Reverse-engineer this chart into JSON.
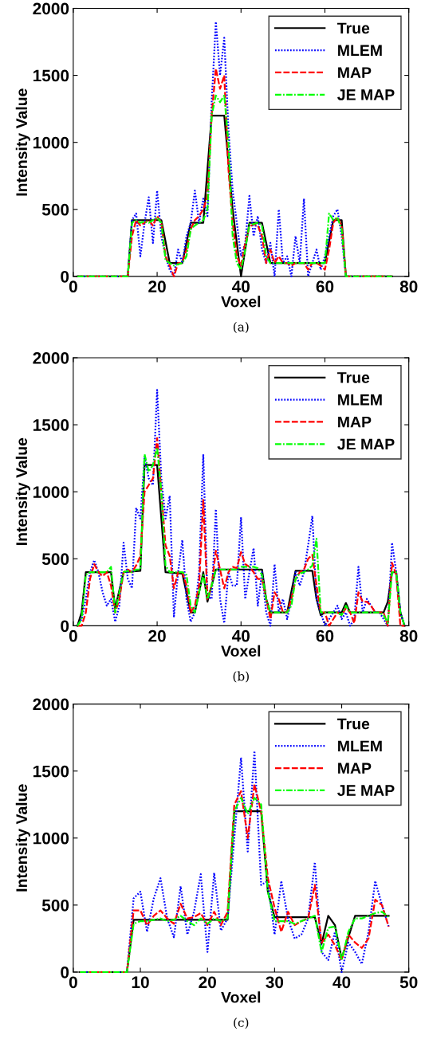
{
  "chart_data": [
    {
      "type": "line",
      "xlabel": "Voxel",
      "ylabel": "Intensity Value",
      "annotations": [
        "(a)"
      ],
      "xlim": [
        0,
        80
      ],
      "ylim": [
        0,
        2000
      ],
      "xticks": [
        0,
        20,
        40,
        60,
        80
      ],
      "yticks": [
        0,
        500,
        1000,
        1500,
        2000
      ],
      "grid": false,
      "legend": "top right",
      "series": [
        {
          "name": "True",
          "color": "#000000",
          "line_style": "solid",
          "x": [
            1,
            13,
            14,
            21,
            23,
            26,
            28,
            31,
            33,
            36,
            38,
            40,
            42,
            45,
            47,
            60,
            62,
            64,
            65,
            76
          ],
          "values": [
            0,
            0,
            420,
            420,
            100,
            100,
            400,
            400,
            1200,
            1200,
            500,
            0,
            400,
            400,
            100,
            100,
            420,
            420,
            0,
            0
          ]
        },
        {
          "name": "MLEM",
          "color": "#0000ff",
          "line_style": "dotted",
          "x": [
            1,
            13,
            14,
            15,
            16,
            17,
            18,
            19,
            20,
            21,
            22,
            23,
            24,
            25,
            26,
            27,
            28,
            29,
            30,
            31,
            32,
            33,
            34,
            35,
            36,
            37,
            38,
            39,
            40,
            41,
            42,
            43,
            44,
            45,
            46,
            47,
            48,
            49,
            50,
            51,
            52,
            53,
            54,
            55,
            56,
            57,
            58,
            59,
            60,
            61,
            62,
            63,
            64,
            65,
            76
          ],
          "values": [
            0,
            0,
            420,
            470,
            150,
            400,
            590,
            250,
            640,
            300,
            150,
            50,
            0,
            200,
            100,
            300,
            400,
            640,
            400,
            580,
            450,
            1300,
            1900,
            1500,
            1780,
            1100,
            640,
            400,
            150,
            250,
            600,
            300,
            450,
            200,
            100,
            250,
            0,
            500,
            100,
            150,
            0,
            300,
            100,
            580,
            0,
            100,
            200,
            50,
            150,
            300,
            450,
            500,
            300,
            0,
            0
          ]
        },
        {
          "name": "MAP",
          "color": "#ff0000",
          "line_style": "dashed",
          "x": [
            1,
            13,
            14,
            15,
            16,
            17,
            18,
            19,
            20,
            21,
            22,
            23,
            24,
            25,
            26,
            27,
            28,
            29,
            30,
            31,
            32,
            33,
            34,
            35,
            36,
            37,
            38,
            39,
            40,
            41,
            42,
            43,
            44,
            45,
            46,
            47,
            48,
            49,
            50,
            51,
            52,
            53,
            54,
            55,
            56,
            57,
            58,
            59,
            60,
            61,
            62,
            63,
            64,
            65,
            76
          ],
          "values": [
            0,
            0,
            300,
            420,
            380,
            400,
            420,
            380,
            450,
            400,
            150,
            80,
            0,
            100,
            100,
            200,
            350,
            420,
            450,
            500,
            600,
            1200,
            1550,
            1400,
            1500,
            800,
            400,
            150,
            80,
            250,
            370,
            390,
            380,
            300,
            100,
            200,
            100,
            150,
            100,
            100,
            80,
            100,
            100,
            100,
            50,
            100,
            100,
            80,
            50,
            200,
            400,
            440,
            380,
            0,
            0
          ]
        },
        {
          "name": "JE MAP",
          "color": "#00ff00",
          "line_style": "dashdot",
          "x": [
            1,
            13,
            14,
            15,
            16,
            17,
            18,
            19,
            20,
            21,
            22,
            23,
            24,
            25,
            26,
            27,
            28,
            29,
            30,
            31,
            32,
            33,
            34,
            35,
            36,
            37,
            38,
            39,
            40,
            41,
            42,
            43,
            44,
            45,
            46,
            47,
            60,
            61,
            62,
            63,
            64,
            65,
            76
          ],
          "values": [
            0,
            0,
            400,
            420,
            400,
            410,
            400,
            420,
            440,
            400,
            120,
            100,
            80,
            90,
            100,
            150,
            350,
            380,
            400,
            420,
            500,
            1200,
            1350,
            1300,
            1350,
            1000,
            300,
            100,
            50,
            200,
            390,
            390,
            400,
            380,
            150,
            100,
            100,
            470,
            420,
            440,
            350,
            0,
            0
          ]
        }
      ]
    },
    {
      "type": "line",
      "xlabel": "Voxel",
      "ylabel": "Intensity Value",
      "annotations": [
        "(b)"
      ],
      "xlim": [
        0,
        80
      ],
      "ylim": [
        0,
        2000
      ],
      "xticks": [
        0,
        20,
        40,
        60,
        80
      ],
      "yticks": [
        0,
        500,
        1000,
        1500,
        2000
      ],
      "grid": false,
      "legend": "top right",
      "series": [
        {
          "name": "True",
          "color": "#000000",
          "line_style": "solid",
          "x": [
            1,
            2,
            3,
            9,
            10,
            12,
            16,
            17,
            20,
            22,
            26,
            28,
            29,
            31,
            32,
            33,
            34,
            45,
            46,
            47,
            51,
            53,
            57,
            58,
            59,
            60,
            64,
            65,
            66,
            74,
            75,
            76,
            77,
            78,
            79
          ],
          "values": [
            0,
            100,
            400,
            400,
            130,
            400,
            410,
            1200,
            1200,
            400,
            390,
            100,
            100,
            400,
            180,
            300,
            420,
            420,
            200,
            100,
            100,
            410,
            410,
            200,
            80,
            100,
            100,
            170,
            100,
            100,
            180,
            400,
            400,
            100,
            0
          ]
        },
        {
          "name": "MLEM",
          "color": "#0000ff",
          "line_style": "dotted",
          "x": [
            1,
            2,
            3,
            4,
            5,
            6,
            7,
            8,
            9,
            10,
            11,
            12,
            13,
            14,
            15,
            16,
            17,
            18,
            19,
            20,
            21,
            22,
            23,
            24,
            25,
            26,
            27,
            28,
            29,
            30,
            31,
            32,
            33,
            34,
            35,
            36,
            37,
            38,
            39,
            40,
            41,
            42,
            43,
            44,
            45,
            46,
            47,
            48,
            49,
            50,
            51,
            52,
            53,
            54,
            55,
            56,
            57,
            58,
            59,
            60,
            61,
            62,
            63,
            64,
            65,
            66,
            67,
            68,
            69,
            70,
            71,
            72,
            73,
            74,
            75,
            76,
            77,
            78,
            79
          ],
          "values": [
            0,
            50,
            200,
            400,
            490,
            400,
            250,
            150,
            200,
            30,
            150,
            620,
            350,
            280,
            880,
            800,
            1260,
            1100,
            1050,
            1760,
            1100,
            800,
            970,
            70,
            400,
            640,
            200,
            30,
            100,
            400,
            1280,
            220,
            200,
            870,
            200,
            20,
            400,
            300,
            300,
            810,
            200,
            400,
            580,
            150,
            400,
            100,
            0,
            460,
            100,
            200,
            50,
            200,
            400,
            300,
            400,
            600,
            820,
            200,
            100,
            0,
            50,
            100,
            150,
            50,
            100,
            0,
            50,
            440,
            100,
            200,
            150,
            100,
            100,
            50,
            0,
            620,
            400,
            100,
            0
          ]
        },
        {
          "name": "MAP",
          "color": "#ff0000",
          "line_style": "dashed",
          "x": [
            1,
            2,
            3,
            4,
            5,
            6,
            7,
            8,
            9,
            10,
            11,
            12,
            13,
            14,
            15,
            16,
            17,
            18,
            19,
            20,
            21,
            22,
            23,
            24,
            25,
            26,
            27,
            28,
            29,
            30,
            31,
            32,
            33,
            34,
            35,
            36,
            37,
            38,
            39,
            40,
            41,
            42,
            43,
            44,
            45,
            46,
            47,
            48,
            49,
            50,
            51,
            52,
            53,
            54,
            55,
            56,
            57,
            58,
            59,
            60,
            61,
            62,
            63,
            64,
            65,
            66,
            67,
            68,
            69,
            70,
            71,
            72,
            73,
            74,
            75,
            76,
            77,
            78,
            79
          ],
          "values": [
            0,
            0,
            100,
            350,
            460,
            400,
            370,
            400,
            300,
            100,
            200,
            400,
            420,
            400,
            450,
            520,
            1000,
            1050,
            1100,
            1400,
            1000,
            600,
            520,
            280,
            400,
            400,
            300,
            100,
            150,
            300,
            940,
            200,
            300,
            560,
            420,
            280,
            400,
            440,
            430,
            550,
            460,
            440,
            400,
            350,
            350,
            200,
            50,
            250,
            200,
            100,
            100,
            200,
            350,
            400,
            420,
            500,
            530,
            300,
            100,
            100,
            0,
            50,
            100,
            80,
            130,
            100,
            20,
            250,
            180,
            180,
            150,
            100,
            100,
            100,
            0,
            470,
            380,
            0,
            0
          ]
        },
        {
          "name": "JE MAP",
          "color": "#00ff00",
          "line_style": "dashdot",
          "x": [
            1,
            2,
            3,
            4,
            5,
            6,
            7,
            8,
            9,
            10,
            11,
            12,
            13,
            14,
            15,
            16,
            17,
            18,
            19,
            20,
            21,
            22,
            23,
            24,
            25,
            26,
            27,
            28,
            29,
            30,
            31,
            32,
            33,
            34,
            35,
            36,
            37,
            38,
            39,
            40,
            41,
            42,
            43,
            44,
            45,
            46,
            47,
            48,
            49,
            50,
            51,
            52,
            53,
            54,
            55,
            56,
            57,
            58,
            59,
            60,
            61,
            62,
            63,
            64,
            65,
            66,
            67,
            68,
            69,
            70,
            71,
            72,
            73,
            74,
            75,
            76,
            77,
            78,
            79
          ],
          "values": [
            0,
            50,
            380,
            400,
            400,
            400,
            400,
            400,
            440,
            100,
            250,
            400,
            410,
            400,
            420,
            420,
            1280,
            1150,
            1200,
            1330,
            1000,
            450,
            400,
            400,
            400,
            400,
            380,
            150,
            100,
            250,
            380,
            200,
            300,
            420,
            420,
            420,
            420,
            420,
            420,
            440,
            440,
            440,
            440,
            430,
            380,
            200,
            100,
            100,
            100,
            100,
            100,
            150,
            350,
            390,
            400,
            420,
            450,
            650,
            100,
            100,
            100,
            100,
            100,
            80,
            150,
            100,
            100,
            100,
            100,
            100,
            100,
            100,
            100,
            80,
            20,
            400,
            400,
            100,
            0
          ]
        }
      ]
    },
    {
      "type": "line",
      "xlabel": "Voxel",
      "ylabel": "Intensity Value",
      "annotations": [
        "(c)"
      ],
      "xlim": [
        0,
        50
      ],
      "ylim": [
        0,
        2000
      ],
      "xticks": [
        0,
        10,
        20,
        30,
        40,
        50
      ],
      "yticks": [
        0,
        500,
        1000,
        1500,
        2000
      ],
      "grid": false,
      "legend": "top right",
      "series": [
        {
          "name": "True",
          "color": "#000000",
          "line_style": "solid",
          "x": [
            1,
            8,
            9,
            23,
            24,
            28,
            29,
            30,
            36,
            37,
            38,
            39,
            40,
            42,
            47
          ],
          "values": [
            0,
            0,
            390,
            390,
            1200,
            1200,
            600,
            410,
            410,
            210,
            420,
            350,
            100,
            420,
            420
          ]
        },
        {
          "name": "MLEM",
          "color": "#0000ff",
          "line_style": "dotted",
          "x": [
            1,
            8,
            9,
            10,
            11,
            12,
            13,
            14,
            15,
            16,
            17,
            18,
            19,
            20,
            21,
            22,
            23,
            24,
            25,
            26,
            27,
            28,
            29,
            30,
            31,
            32,
            33,
            34,
            35,
            36,
            37,
            38,
            39,
            40,
            41,
            42,
            43,
            44,
            45,
            46,
            47
          ],
          "values": [
            0,
            0,
            550,
            600,
            300,
            550,
            700,
            400,
            260,
            640,
            280,
            450,
            730,
            150,
            740,
            310,
            400,
            1000,
            1600,
            900,
            1650,
            650,
            680,
            280,
            680,
            400,
            250,
            280,
            400,
            820,
            150,
            90,
            300,
            0,
            220,
            150,
            60,
            300,
            680,
            500,
            340
          ]
        },
        {
          "name": "MAP",
          "color": "#ff0000",
          "line_style": "dashed",
          "x": [
            1,
            8,
            9,
            10,
            11,
            12,
            13,
            14,
            15,
            16,
            17,
            18,
            19,
            20,
            21,
            22,
            23,
            24,
            25,
            26,
            27,
            28,
            29,
            30,
            31,
            32,
            33,
            34,
            35,
            36,
            37,
            38,
            39,
            40,
            41,
            42,
            43,
            44,
            45,
            46,
            47
          ],
          "values": [
            0,
            0,
            460,
            460,
            350,
            420,
            460,
            400,
            360,
            510,
            400,
            410,
            440,
            350,
            450,
            350,
            450,
            1250,
            1350,
            1000,
            1400,
            1200,
            700,
            480,
            300,
            450,
            350,
            380,
            400,
            650,
            220,
            280,
            200,
            90,
            280,
            220,
            180,
            250,
            540,
            500,
            340
          ]
        },
        {
          "name": "JE MAP",
          "color": "#00ff00",
          "line_style": "dashdot",
          "x": [
            1,
            8,
            9,
            10,
            11,
            12,
            13,
            14,
            15,
            16,
            17,
            18,
            19,
            20,
            21,
            22,
            23,
            24,
            25,
            26,
            27,
            28,
            29,
            30,
            31,
            32,
            33,
            34,
            35,
            36,
            37,
            38,
            39,
            40,
            41,
            42,
            43,
            44,
            45,
            46,
            47
          ],
          "values": [
            0,
            0,
            360,
            380,
            380,
            390,
            400,
            380,
            390,
            420,
            380,
            350,
            400,
            360,
            400,
            380,
            400,
            1200,
            1300,
            1180,
            1300,
            1250,
            600,
            380,
            380,
            380,
            360,
            380,
            400,
            420,
            150,
            330,
            340,
            90,
            300,
            400,
            400,
            420,
            440,
            450,
            410
          ]
        }
      ]
    }
  ]
}
